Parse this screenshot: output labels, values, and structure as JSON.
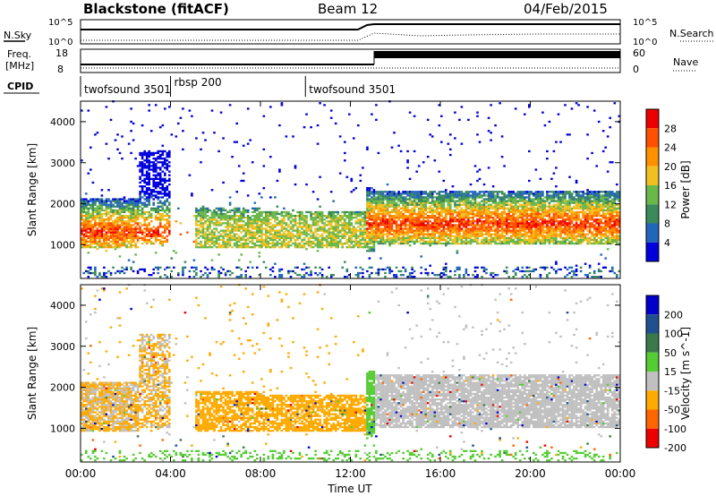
{
  "header": {
    "station": "Blackstone (fitACF)",
    "beam": "Beam 12",
    "date": "04/Feb/2015"
  },
  "labels": {
    "nsky": "N.Sky",
    "nsearch": "N.Search",
    "freq_line1": "Freq.",
    "freq_line2": "[MHz]",
    "nave": "Nave",
    "cpid": "CPID",
    "nsky_top": "10^5",
    "nsky_bottom": "10^0",
    "nsearch_top": "10^5",
    "nsearch_bottom": "10^0",
    "freq_top": "18",
    "freq_bottom": "8",
    "nave_top": "60",
    "nave_bottom": "0"
  },
  "cpid_segments": [
    {
      "label": "twofsound 3501",
      "start": 0.0,
      "end": 4.0
    },
    {
      "label": "rbsp 200",
      "start": 4.0,
      "end": 10.0
    },
    {
      "label": "twofsound 3501",
      "start": 10.0,
      "end": 24.0
    }
  ],
  "chart_data": [
    {
      "type": "heatmap",
      "name": "power",
      "ylabel": "Slant Range [km]",
      "colorbar_label": "Power [dB]",
      "xlim": [
        0,
        24
      ],
      "ylim": [
        180,
        4500
      ],
      "yticks": [
        1000,
        2000,
        3000,
        4000
      ],
      "colorbar_ticks": [
        "4",
        "8",
        "12",
        "16",
        "20",
        "24",
        "28"
      ],
      "colors": [
        "#0000dd",
        "#2266bb",
        "#3a8a5a",
        "#6ab84a",
        "#f0c020",
        "#ff9000",
        "#ff5000",
        "#ee0000"
      ]
    },
    {
      "type": "heatmap",
      "name": "velocity",
      "ylabel": "Slant Range [km]",
      "colorbar_label": "Velocity [m s^-1]",
      "xlabel": "Time UT",
      "xlim": [
        0,
        24
      ],
      "ylim": [
        180,
        4500
      ],
      "yticks": [
        1000,
        2000,
        3000,
        4000
      ],
      "xticks": [
        "00:00",
        "04:00",
        "08:00",
        "12:00",
        "16:00",
        "20:00",
        "00:00"
      ],
      "colorbar_ticks": [
        "200",
        "100",
        "50",
        "15",
        "-15",
        "-50",
        "-100",
        "-200"
      ],
      "colors": [
        "#0000cc",
        "#205090",
        "#3a7a4a",
        "#55cc33",
        "#c0c0c0",
        "#ffaa00",
        "#ff6600",
        "#ee0000"
      ]
    }
  ]
}
